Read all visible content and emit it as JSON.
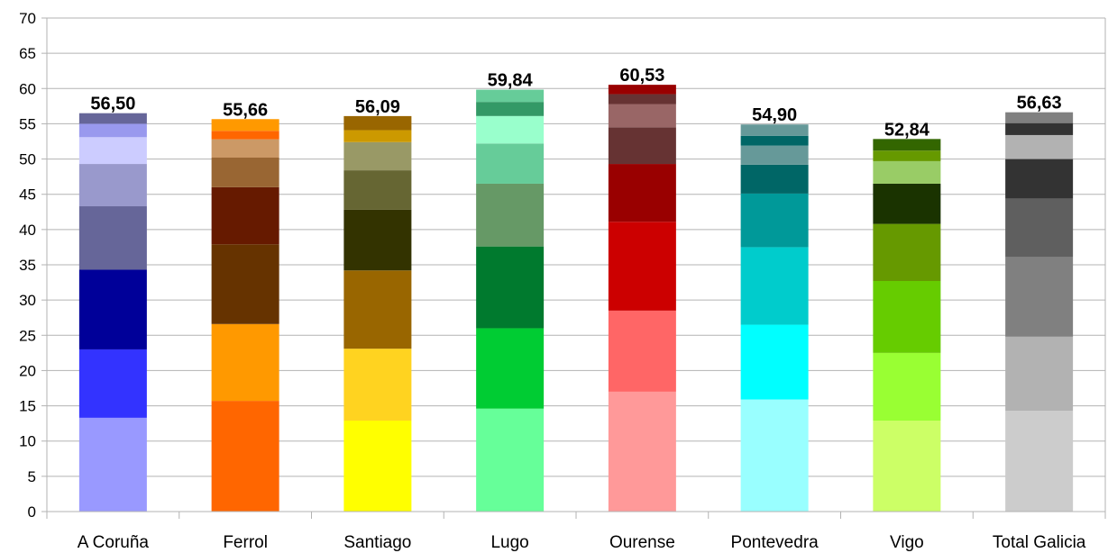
{
  "chart_data": {
    "type": "bar",
    "stacked": true,
    "title": "",
    "xlabel": "",
    "ylabel": "",
    "ylim": [
      0,
      70
    ],
    "yticks": [
      0,
      5,
      10,
      15,
      20,
      25,
      30,
      35,
      40,
      45,
      50,
      55,
      60,
      65,
      70
    ],
    "grid": true,
    "legend": "none",
    "categories": [
      "A Coruña",
      "Ferrol",
      "Santiago",
      "Lugo",
      "Ourense",
      "Pontevedra",
      "Vigo",
      "Total Galicia"
    ],
    "totals": [
      56.5,
      55.66,
      56.09,
      59.84,
      60.53,
      54.9,
      52.84,
      56.63
    ],
    "total_labels": [
      "56,50",
      "55,66",
      "56,09",
      "59,84",
      "60,53",
      "54,90",
      "52,84",
      "56,63"
    ],
    "stacks": [
      {
        "category": "A Coruña",
        "segments": [
          {
            "value": 13.3,
            "color": "#9999ff"
          },
          {
            "value": 9.7,
            "color": "#3333ff"
          },
          {
            "value": 11.3,
            "color": "#000099"
          },
          {
            "value": 9.0,
            "color": "#666699"
          },
          {
            "value": 6.0,
            "color": "#9999cc"
          },
          {
            "value": 3.8,
            "color": "#ccccff"
          },
          {
            "value": 1.9,
            "color": "#9999ee"
          },
          {
            "value": 1.5,
            "color": "#666699"
          }
        ]
      },
      {
        "category": "Ferrol",
        "segments": [
          {
            "value": 15.7,
            "color": "#ff6600"
          },
          {
            "value": 10.9,
            "color": "#ff9900"
          },
          {
            "value": 11.3,
            "color": "#663300"
          },
          {
            "value": 8.1,
            "color": "#661a00"
          },
          {
            "value": 4.2,
            "color": "#996633"
          },
          {
            "value": 2.6,
            "color": "#cc9966"
          },
          {
            "value": 1.2,
            "color": "#ff6600"
          },
          {
            "value": 1.66,
            "color": "#ff9900"
          }
        ]
      },
      {
        "category": "Santiago",
        "segments": [
          {
            "value": 12.9,
            "color": "#ffff00"
          },
          {
            "value": 10.2,
            "color": "#ffd320"
          },
          {
            "value": 11.1,
            "color": "#996600"
          },
          {
            "value": 8.6,
            "color": "#333300"
          },
          {
            "value": 5.6,
            "color": "#666633"
          },
          {
            "value": 4.0,
            "color": "#999966"
          },
          {
            "value": 1.7,
            "color": "#cc9900"
          },
          {
            "value": 1.99,
            "color": "#996600"
          }
        ]
      },
      {
        "category": "Lugo",
        "segments": [
          {
            "value": 14.6,
            "color": "#66ff99"
          },
          {
            "value": 11.4,
            "color": "#00cc33"
          },
          {
            "value": 11.6,
            "color": "#007a2e"
          },
          {
            "value": 8.9,
            "color": "#669966"
          },
          {
            "value": 5.7,
            "color": "#66cc99"
          },
          {
            "value": 3.9,
            "color": "#99ffcc"
          },
          {
            "value": 2.0,
            "color": "#339966"
          },
          {
            "value": 1.74,
            "color": "#66cc99"
          }
        ]
      },
      {
        "category": "Ourense",
        "segments": [
          {
            "value": 17.0,
            "color": "#ff9999"
          },
          {
            "value": 11.5,
            "color": "#ff6666"
          },
          {
            "value": 12.6,
            "color": "#cc0000"
          },
          {
            "value": 8.2,
            "color": "#990000"
          },
          {
            "value": 5.2,
            "color": "#663333"
          },
          {
            "value": 3.3,
            "color": "#996666"
          },
          {
            "value": 1.4,
            "color": "#663333"
          },
          {
            "value": 1.33,
            "color": "#990000"
          }
        ]
      },
      {
        "category": "Pontevedra",
        "segments": [
          {
            "value": 15.9,
            "color": "#99ffff"
          },
          {
            "value": 10.6,
            "color": "#00ffff"
          },
          {
            "value": 11.0,
            "color": "#00cccc"
          },
          {
            "value": 7.6,
            "color": "#009999"
          },
          {
            "value": 4.1,
            "color": "#006666"
          },
          {
            "value": 2.7,
            "color": "#669999"
          },
          {
            "value": 1.4,
            "color": "#006666"
          },
          {
            "value": 1.6,
            "color": "#669999"
          }
        ]
      },
      {
        "category": "Vigo",
        "segments": [
          {
            "value": 12.9,
            "color": "#ccff66"
          },
          {
            "value": 9.6,
            "color": "#99ff33"
          },
          {
            "value": 10.2,
            "color": "#66cc00"
          },
          {
            "value": 8.1,
            "color": "#669900"
          },
          {
            "value": 5.7,
            "color": "#1a3300"
          },
          {
            "value": 3.2,
            "color": "#99cc66"
          },
          {
            "value": 1.5,
            "color": "#669900"
          },
          {
            "value": 1.64,
            "color": "#336600"
          }
        ]
      },
      {
        "category": "Total Galicia",
        "segments": [
          {
            "value": 14.3,
            "color": "#cccccc"
          },
          {
            "value": 10.5,
            "color": "#b2b2b2"
          },
          {
            "value": 11.3,
            "color": "#808080"
          },
          {
            "value": 8.3,
            "color": "#5f5f5f"
          },
          {
            "value": 5.6,
            "color": "#333333"
          },
          {
            "value": 3.4,
            "color": "#b2b2b2"
          },
          {
            "value": 1.7,
            "color": "#333333"
          },
          {
            "value": 1.53,
            "color": "#808080"
          }
        ]
      }
    ]
  }
}
